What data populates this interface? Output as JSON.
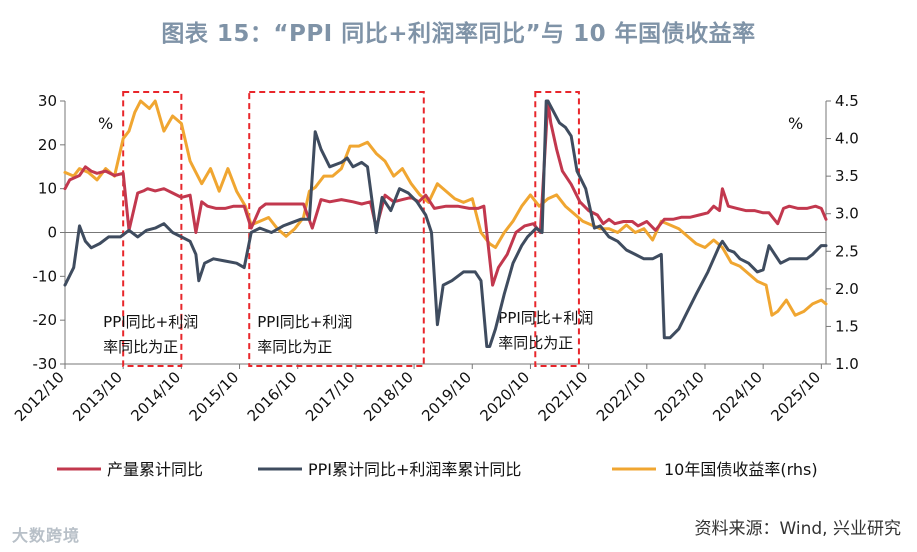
{
  "page": {
    "title": "图表 15：“PPI 同比+利润率同比”与 10 年国债收益率",
    "source": "资料来源：Wind, 兴业研究",
    "watermark": "大数跨境"
  },
  "chart_data": {
    "type": "line",
    "title": "图表 15：“PPI 同比+利润率同比”与 10 年国债收益率",
    "left_axis": {
      "unit": "%",
      "ylim": [
        -30,
        30
      ],
      "ticks": [
        -30,
        -20,
        -10,
        0,
        10,
        20,
        30
      ]
    },
    "right_axis": {
      "unit": "%",
      "ylim": [
        1.0,
        4.5
      ],
      "ticks": [
        1.0,
        1.5,
        2.0,
        2.5,
        3.0,
        3.5,
        4.0,
        4.5
      ],
      "label": "rhs"
    },
    "x_range": [
      "2012/10",
      "2025/10"
    ],
    "x_ticks": [
      "2012/10",
      "2013/10",
      "2014/10",
      "2015/10",
      "2016/10",
      "2017/10",
      "2018/10",
      "2019/10",
      "2020/10",
      "2021/10",
      "2022/10",
      "2023/10",
      "2024/10",
      "2025/10"
    ],
    "legend": [
      "产量累计同比",
      "PPI累计同比+利润率累计同比",
      "10年国债收益率(rhs)"
    ],
    "annotations": [
      {
        "start": "2013/10",
        "end": "2014/10",
        "lines": [
          "PPI同比+利润",
          "率同比为正"
        ]
      },
      {
        "start": "2015/12",
        "end": "2018/12",
        "lines": [
          "PPI同比+利润",
          "率同比为正"
        ]
      },
      {
        "start": "2020/11",
        "end": "2021/08",
        "lines": [
          "PPI同比+利润",
          "率同比为正"
        ]
      }
    ],
    "series": [
      {
        "name": "产量累计同比",
        "axis": "left",
        "color": "#c2384e",
        "x": [
          2012.75,
          2012.83,
          2013.0,
          2013.1,
          2013.2,
          2013.3,
          2013.45,
          2013.6,
          2013.75,
          2013.85,
          2014.0,
          2014.1,
          2014.17,
          2014.3,
          2014.45,
          2014.6,
          2014.75,
          2014.9,
          2015.0,
          2015.1,
          2015.2,
          2015.35,
          2015.5,
          2015.65,
          2015.83,
          2015.95,
          2016.1,
          2016.2,
          2016.4,
          2016.6,
          2016.85,
          2017.0,
          2017.15,
          2017.3,
          2017.5,
          2017.7,
          2017.85,
          2018.0,
          2018.1,
          2018.25,
          2018.4,
          2018.55,
          2018.7,
          2018.83,
          2018.95,
          2019.1,
          2019.3,
          2019.5,
          2019.7,
          2019.85,
          2019.95,
          2020.1,
          2020.2,
          2020.35,
          2020.5,
          2020.65,
          2020.8,
          2020.92,
          2021.05,
          2021.1,
          2021.2,
          2021.3,
          2021.45,
          2021.6,
          2021.75,
          2021.9,
          2022.0,
          2022.1,
          2022.2,
          2022.35,
          2022.5,
          2022.6,
          2022.75,
          2022.9,
          2023.05,
          2023.2,
          2023.35,
          2023.5,
          2023.65,
          2023.8,
          2023.9,
          2024.0,
          2024.05,
          2024.15,
          2024.3,
          2024.45,
          2024.6,
          2024.75,
          2024.85,
          2025.0,
          2025.1,
          2025.2,
          2025.35,
          2025.5,
          2025.65,
          2025.75,
          2025.83
        ],
        "values": [
          10,
          12,
          13,
          15,
          14,
          13.5,
          14,
          13,
          13.5,
          0.5,
          9,
          9.5,
          10,
          9.5,
          10,
          9,
          8,
          8.5,
          0,
          7,
          6,
          5.5,
          5.5,
          6,
          6,
          1,
          5.5,
          6.5,
          6.5,
          6.5,
          6.5,
          1,
          7.5,
          7,
          7.5,
          7,
          6.5,
          7,
          1,
          8.5,
          7,
          7.5,
          8,
          7,
          8.5,
          5.5,
          6,
          6,
          5.5,
          5.5,
          6,
          -12,
          -8,
          -5,
          0,
          1.5,
          2,
          0,
          30,
          25,
          19,
          14,
          11,
          7,
          5,
          4,
          2,
          3,
          2,
          2.5,
          2.5,
          1.5,
          2.5,
          0.5,
          3,
          3,
          3.5,
          3.5,
          4,
          4.5,
          6,
          5,
          10,
          6,
          5.5,
          5,
          5,
          4.5,
          4.5,
          2,
          5.5,
          6,
          5.5,
          5.5,
          6,
          5.5,
          3
        ]
      },
      {
        "name": "PPI累计同比+利润率累计同比",
        "axis": "left",
        "color": "#3f4c5f",
        "x": [
          2012.75,
          2012.9,
          2013.0,
          2013.1,
          2013.2,
          2013.35,
          2013.5,
          2013.7,
          2013.85,
          2014.0,
          2014.15,
          2014.3,
          2014.45,
          2014.6,
          2014.75,
          2014.9,
          2015.0,
          2015.05,
          2015.15,
          2015.3,
          2015.5,
          2015.7,
          2015.83,
          2015.95,
          2016.1,
          2016.3,
          2016.5,
          2016.6,
          2016.8,
          2016.95,
          2017.05,
          2017.15,
          2017.3,
          2017.5,
          2017.6,
          2017.7,
          2017.85,
          2017.95,
          2018.1,
          2018.2,
          2018.35,
          2018.5,
          2018.65,
          2018.8,
          2018.95,
          2019.05,
          2019.15,
          2019.25,
          2019.4,
          2019.6,
          2019.8,
          2019.9,
          2020.0,
          2020.05,
          2020.15,
          2020.3,
          2020.45,
          2020.6,
          2020.7,
          2020.85,
          2020.95,
          2021.02,
          2021.05,
          2021.25,
          2021.35,
          2021.45,
          2021.55,
          2021.7,
          2021.85,
          2021.95,
          2022.1,
          2022.25,
          2022.4,
          2022.55,
          2022.7,
          2022.85,
          2023.0,
          2023.05,
          2023.15,
          2023.3,
          2023.45,
          2023.6,
          2023.8,
          2024.0,
          2024.05,
          2024.15,
          2024.25,
          2024.35,
          2024.5,
          2024.65,
          2024.75,
          2024.85,
          2024.95,
          2025.05,
          2025.2,
          2025.35,
          2025.5,
          2025.6,
          2025.75,
          2025.83
        ],
        "values": [
          -12,
          -8,
          1.5,
          -2,
          -3.5,
          -2.5,
          -1,
          -1,
          0.5,
          -1,
          0.5,
          1,
          2,
          0,
          -1,
          -2,
          -5,
          -11,
          -7,
          -6,
          -6.5,
          -7,
          -8,
          0,
          1,
          0,
          1.5,
          2,
          3,
          3,
          23,
          19,
          15,
          16,
          17,
          15,
          16,
          15,
          0,
          8,
          5,
          10,
          9,
          7,
          4,
          0,
          -21,
          -12,
          -11,
          -9,
          -9,
          -11,
          -26,
          -26,
          -22,
          -14,
          -7,
          -3,
          -1,
          1,
          0,
          30,
          30,
          25,
          24,
          22,
          14,
          10,
          1,
          1.5,
          -1,
          -2,
          -4,
          -5,
          -6,
          -6,
          -5,
          -24,
          -24,
          -22,
          -18,
          -14,
          -9,
          -3,
          -2,
          -4,
          -4.5,
          -6,
          -7,
          -9,
          -8.5,
          -3,
          -5,
          -7,
          -6,
          -6,
          -6,
          -5,
          -3,
          -3
        ]
      },
      {
        "name": "10年国债收益率(rhs)",
        "axis": "right",
        "color": "#f0a631",
        "x": [
          2012.75,
          2012.9,
          2013.0,
          2013.15,
          2013.3,
          2013.45,
          2013.6,
          2013.75,
          2013.85,
          2013.95,
          2014.05,
          2014.2,
          2014.3,
          2014.45,
          2014.6,
          2014.75,
          2014.9,
          2015.0,
          2015.1,
          2015.25,
          2015.4,
          2015.55,
          2015.7,
          2015.85,
          2015.95,
          2016.1,
          2016.25,
          2016.4,
          2016.55,
          2016.7,
          2016.85,
          2016.95,
          2017.05,
          2017.2,
          2017.35,
          2017.5,
          2017.65,
          2017.8,
          2017.95,
          2018.1,
          2018.25,
          2018.4,
          2018.55,
          2018.7,
          2018.85,
          2019.0,
          2019.15,
          2019.3,
          2019.45,
          2019.6,
          2019.75,
          2019.9,
          2020.05,
          2020.15,
          2020.3,
          2020.45,
          2020.6,
          2020.75,
          2020.9,
          2021.05,
          2021.2,
          2021.35,
          2021.5,
          2021.65,
          2021.8,
          2021.95,
          2022.1,
          2022.25,
          2022.4,
          2022.55,
          2022.7,
          2022.85,
          2023.0,
          2023.15,
          2023.3,
          2023.45,
          2023.6,
          2023.75,
          2023.9,
          2024.05,
          2024.2,
          2024.35,
          2024.5,
          2024.65,
          2024.8,
          2024.9,
          2025.0,
          2025.15,
          2025.3,
          2025.45,
          2025.6,
          2025.75,
          2025.83
        ],
        "values": [
          3.55,
          3.5,
          3.6,
          3.55,
          3.45,
          3.6,
          3.5,
          4.0,
          4.1,
          4.35,
          4.5,
          4.4,
          4.5,
          4.1,
          4.3,
          4.2,
          3.7,
          3.55,
          3.4,
          3.6,
          3.3,
          3.6,
          3.3,
          3.1,
          2.85,
          2.9,
          2.95,
          2.8,
          2.7,
          2.8,
          2.95,
          3.3,
          3.35,
          3.5,
          3.5,
          3.6,
          3.9,
          3.9,
          3.95,
          3.8,
          3.7,
          3.5,
          3.6,
          3.4,
          3.25,
          3.15,
          3.4,
          3.3,
          3.2,
          3.15,
          3.2,
          2.75,
          2.6,
          2.55,
          2.75,
          2.9,
          3.1,
          3.25,
          3.1,
          3.2,
          3.25,
          3.1,
          3.0,
          2.9,
          2.85,
          2.8,
          2.8,
          2.75,
          2.85,
          2.75,
          2.8,
          2.65,
          2.9,
          2.85,
          2.8,
          2.7,
          2.6,
          2.55,
          2.65,
          2.55,
          2.35,
          2.3,
          2.2,
          2.1,
          2.05,
          1.65,
          1.7,
          1.85,
          1.65,
          1.7,
          1.8,
          1.85,
          1.8
        ]
      }
    ]
  }
}
